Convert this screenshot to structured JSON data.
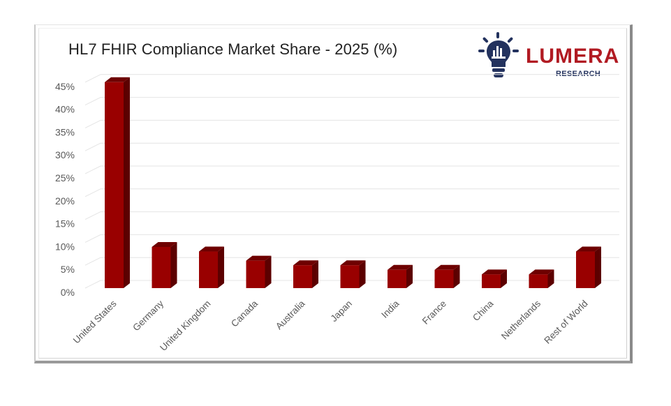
{
  "title": "HL7 FHIR Compliance Market Share - 2025 (%)",
  "logo": {
    "name": "LUMERA",
    "subtitle": "RESEARCH",
    "icon": "lightbulb-chart-icon",
    "colors": {
      "wordmark": "#b11a22",
      "icon": "#23325e"
    }
  },
  "colors": {
    "bar_front": "#990000",
    "bar_top": "#6e0000",
    "bar_side": "#5c0000",
    "gridline": "#e4e4e4",
    "tick_text": "#595959"
  },
  "chart_data": {
    "type": "bar",
    "style": "3d-column",
    "title": "HL7 FHIR Compliance Market Share - 2025 (%)",
    "xlabel": "",
    "ylabel": "",
    "categories": [
      "United States",
      "Germany",
      "United Kingdom",
      "Canada",
      "Australia",
      "Japan",
      "India",
      "France",
      "China",
      "Netherlands",
      "Rest of World"
    ],
    "values": [
      45,
      9,
      8,
      6,
      5,
      5,
      4,
      4,
      3,
      3,
      8
    ],
    "unit": "%",
    "ylim": [
      0,
      45
    ],
    "yticks": [
      "0%",
      "5%",
      "10%",
      "15%",
      "20%",
      "25%",
      "30%",
      "35%",
      "40%",
      "45%"
    ],
    "grid": true,
    "legend": null
  }
}
